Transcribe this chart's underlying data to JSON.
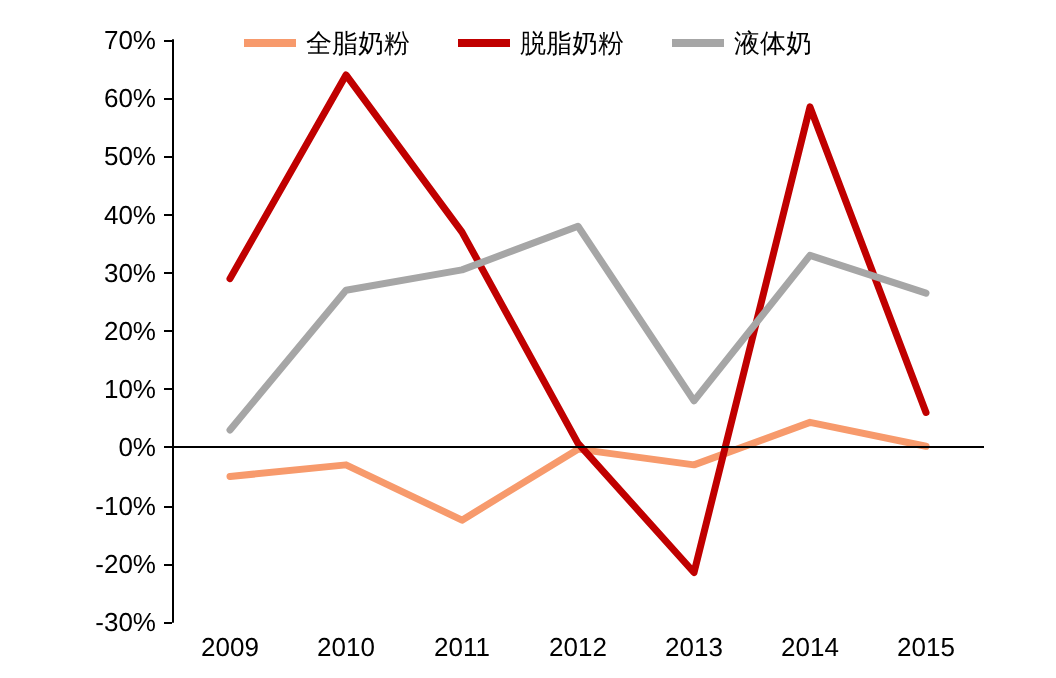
{
  "chart_data": {
    "type": "line",
    "categories": [
      "2009",
      "2010",
      "2011",
      "2012",
      "2013",
      "2014",
      "2015"
    ],
    "series": [
      {
        "name": "全脂奶粉",
        "color": "#f79a6c",
        "values": [
          -5,
          -3,
          -12.5,
          -0.3,
          -3,
          4.3,
          0.2
        ]
      },
      {
        "name": "脱脂奶粉",
        "color": "#c00000",
        "values": [
          29,
          64,
          37,
          0.7,
          -21.5,
          58.5,
          6
        ]
      },
      {
        "name": "液体奶",
        "color": "#a6a6a6",
        "values": [
          3,
          27,
          30.5,
          38,
          8,
          33,
          26.5
        ]
      }
    ],
    "ylim": [
      -30,
      70
    ],
    "yticks": [
      {
        "value": -30,
        "label": "-30%"
      },
      {
        "value": -20,
        "label": "-20%"
      },
      {
        "value": -10,
        "label": "-10%"
      },
      {
        "value": 0,
        "label": "0%"
      },
      {
        "value": 10,
        "label": "10%"
      },
      {
        "value": 20,
        "label": "20%"
      },
      {
        "value": 30,
        "label": "30%"
      },
      {
        "value": 40,
        "label": "40%"
      },
      {
        "value": 50,
        "label": "50%"
      },
      {
        "value": 60,
        "label": "60%"
      },
      {
        "value": 70,
        "label": "70%"
      }
    ],
    "ref_lines": [
      {
        "axis": "y",
        "value": 0,
        "color": "#000000"
      }
    ],
    "grid": false,
    "legend": "top",
    "marker": "none",
    "line_style": "solid"
  }
}
